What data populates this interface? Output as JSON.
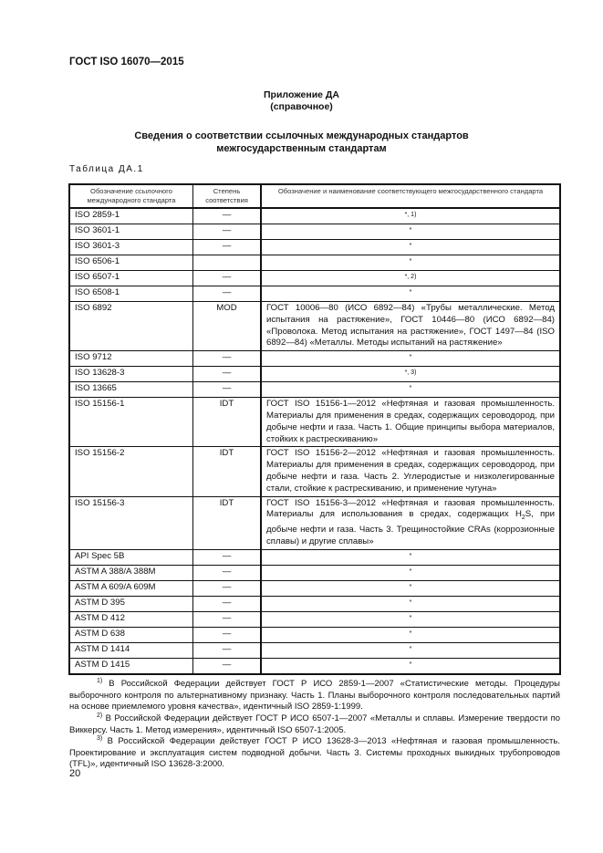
{
  "header": {
    "doc_code": "ГОСТ ISO 16070—2015"
  },
  "appendix": {
    "title": "Приложение ДА",
    "subtitle": "(справочное)"
  },
  "section_title": {
    "line1": "Сведения о соответствии ссылочных международных стандартов",
    "line2": "межгосударственным стандартам"
  },
  "table_caption": "Таблица ДА.1",
  "table": {
    "headers": [
      "Обозначение ссылочного международного стандарта",
      "Степень соответствия",
      "Обозначение и наименование соответствующего межгосударственного стандарта"
    ],
    "rows": [
      {
        "ref": "ISO 2859-1",
        "degree": "—",
        "text": "*",
        "note": ", 1)"
      },
      {
        "ref": "ISO 3601-1",
        "degree": "—",
        "text": "*",
        "note": ""
      },
      {
        "ref": "ISO 3601-3",
        "degree": "—",
        "text": "*",
        "note": ""
      },
      {
        "ref": "ISO 6506-1",
        "degree": "",
        "text": "*",
        "note": ""
      },
      {
        "ref": "ISO 6507-1",
        "degree": "—",
        "text": "*",
        "note": ", 2)"
      },
      {
        "ref": "ISO 6508-1",
        "degree": "—",
        "text": "*",
        "note": ""
      },
      {
        "ref": "ISO 6892",
        "degree": "MOD",
        "text": "ГОСТ 10006—80 (ИСО 6892—84) «Трубы металлические. Метод испытания на растяжение», ГОСТ 10446—80 (ИСО 6892—84) «Проволока. Метод испытания на растяжение», ГОСТ 1497—84 (ISO 6892—84) «Металлы. Методы испытаний на растяжение»"
      },
      {
        "ref": "ISO 9712",
        "degree": "—",
        "text": "*",
        "note": ""
      },
      {
        "ref": "ISO 13628-3",
        "degree": "—",
        "text": "*",
        "note": ", 3)"
      },
      {
        "ref": "ISO 13665",
        "degree": "—",
        "text": "*",
        "note": ""
      },
      {
        "ref": "ISO 15156-1",
        "degree": "IDT",
        "text": "ГОСТ ISO 15156-1—2012 «Нефтяная и газовая промышленность. Материалы для применения в средах, содержащих сероводород, при добыче нефти и газа. Часть 1. Общие принципы выбора материалов, стойких к растрескиванию»"
      },
      {
        "ref": "ISO 15156-2",
        "degree": "IDT",
        "text": "ГОСТ ISO 15156-2—2012 «Нефтяная и газовая промышленность. Материалы для применения в средах, содержащих сероводород, при добыче нефти и газа. Часть 2. Углеродистые и низколегированные стали, стойкие к растрескиванию, и применение чугуна»"
      },
      {
        "ref": "ISO 15156-3",
        "degree": "IDT",
        "text": "ГОСТ ISO 15156-3—2012 «Нефтяная и газовая промышленность. Материалы для использования в средах, содержащих H",
        "sub": "2",
        "text_after": "S, при добыче нефти и газа. Часть 3. Трещиностойкие CRAs (коррозионные сплавы) и другие сплавы»"
      },
      {
        "ref": "API Spec 5B",
        "degree": "—",
        "text": "*",
        "note": ""
      },
      {
        "ref": "ASTM A 388/A 388M",
        "degree": "—",
        "text": "*",
        "note": ""
      },
      {
        "ref": "ASTM A 609/A 609M",
        "degree": "—",
        "text": "*",
        "note": ""
      },
      {
        "ref": "ASTM D 395",
        "degree": "—",
        "text": "*",
        "note": ""
      },
      {
        "ref": "ASTM D 412",
        "degree": "—",
        "text": "*",
        "note": ""
      },
      {
        "ref": "ASTM D 638",
        "degree": "—",
        "text": "*",
        "note": ""
      },
      {
        "ref": "ASTM D 1414",
        "degree": "—",
        "text": "*",
        "note": ""
      },
      {
        "ref": "ASTM D 1415",
        "degree": "—",
        "text": "*",
        "note": ""
      }
    ]
  },
  "footnotes": [
    {
      "mark": "1)",
      "text": " В Российской Федерации действует ГОСТ Р ИСО 2859-1—2007 «Статистические методы. Процедуры выборочного контроля по альтернативному признаку. Часть 1. Планы выборочного контроля последовательных партий на основе приемлемого уровня качества», идентичный ISO 2859-1:1999."
    },
    {
      "mark": "2)",
      "text": " В Российской Федерации действует ГОСТ Р ИСО 6507-1—2007 «Металлы и сплавы. Измерение твердости по Виккерсу. Часть 1. Метод измерения», идентичный ISO 6507-1:2005."
    },
    {
      "mark": "3)",
      "text": " В Российской Федерации действует ГОСТ Р ИСО 13628-3—2013 «Нефтяная и газовая промышленность. Проектирование и эксплуатация систем подводной добычи. Часть 3. Системы проходных выкидных трубопроводов (TFL)», идентичный ISO 13628-3:2000."
    }
  ],
  "page_number": "20"
}
